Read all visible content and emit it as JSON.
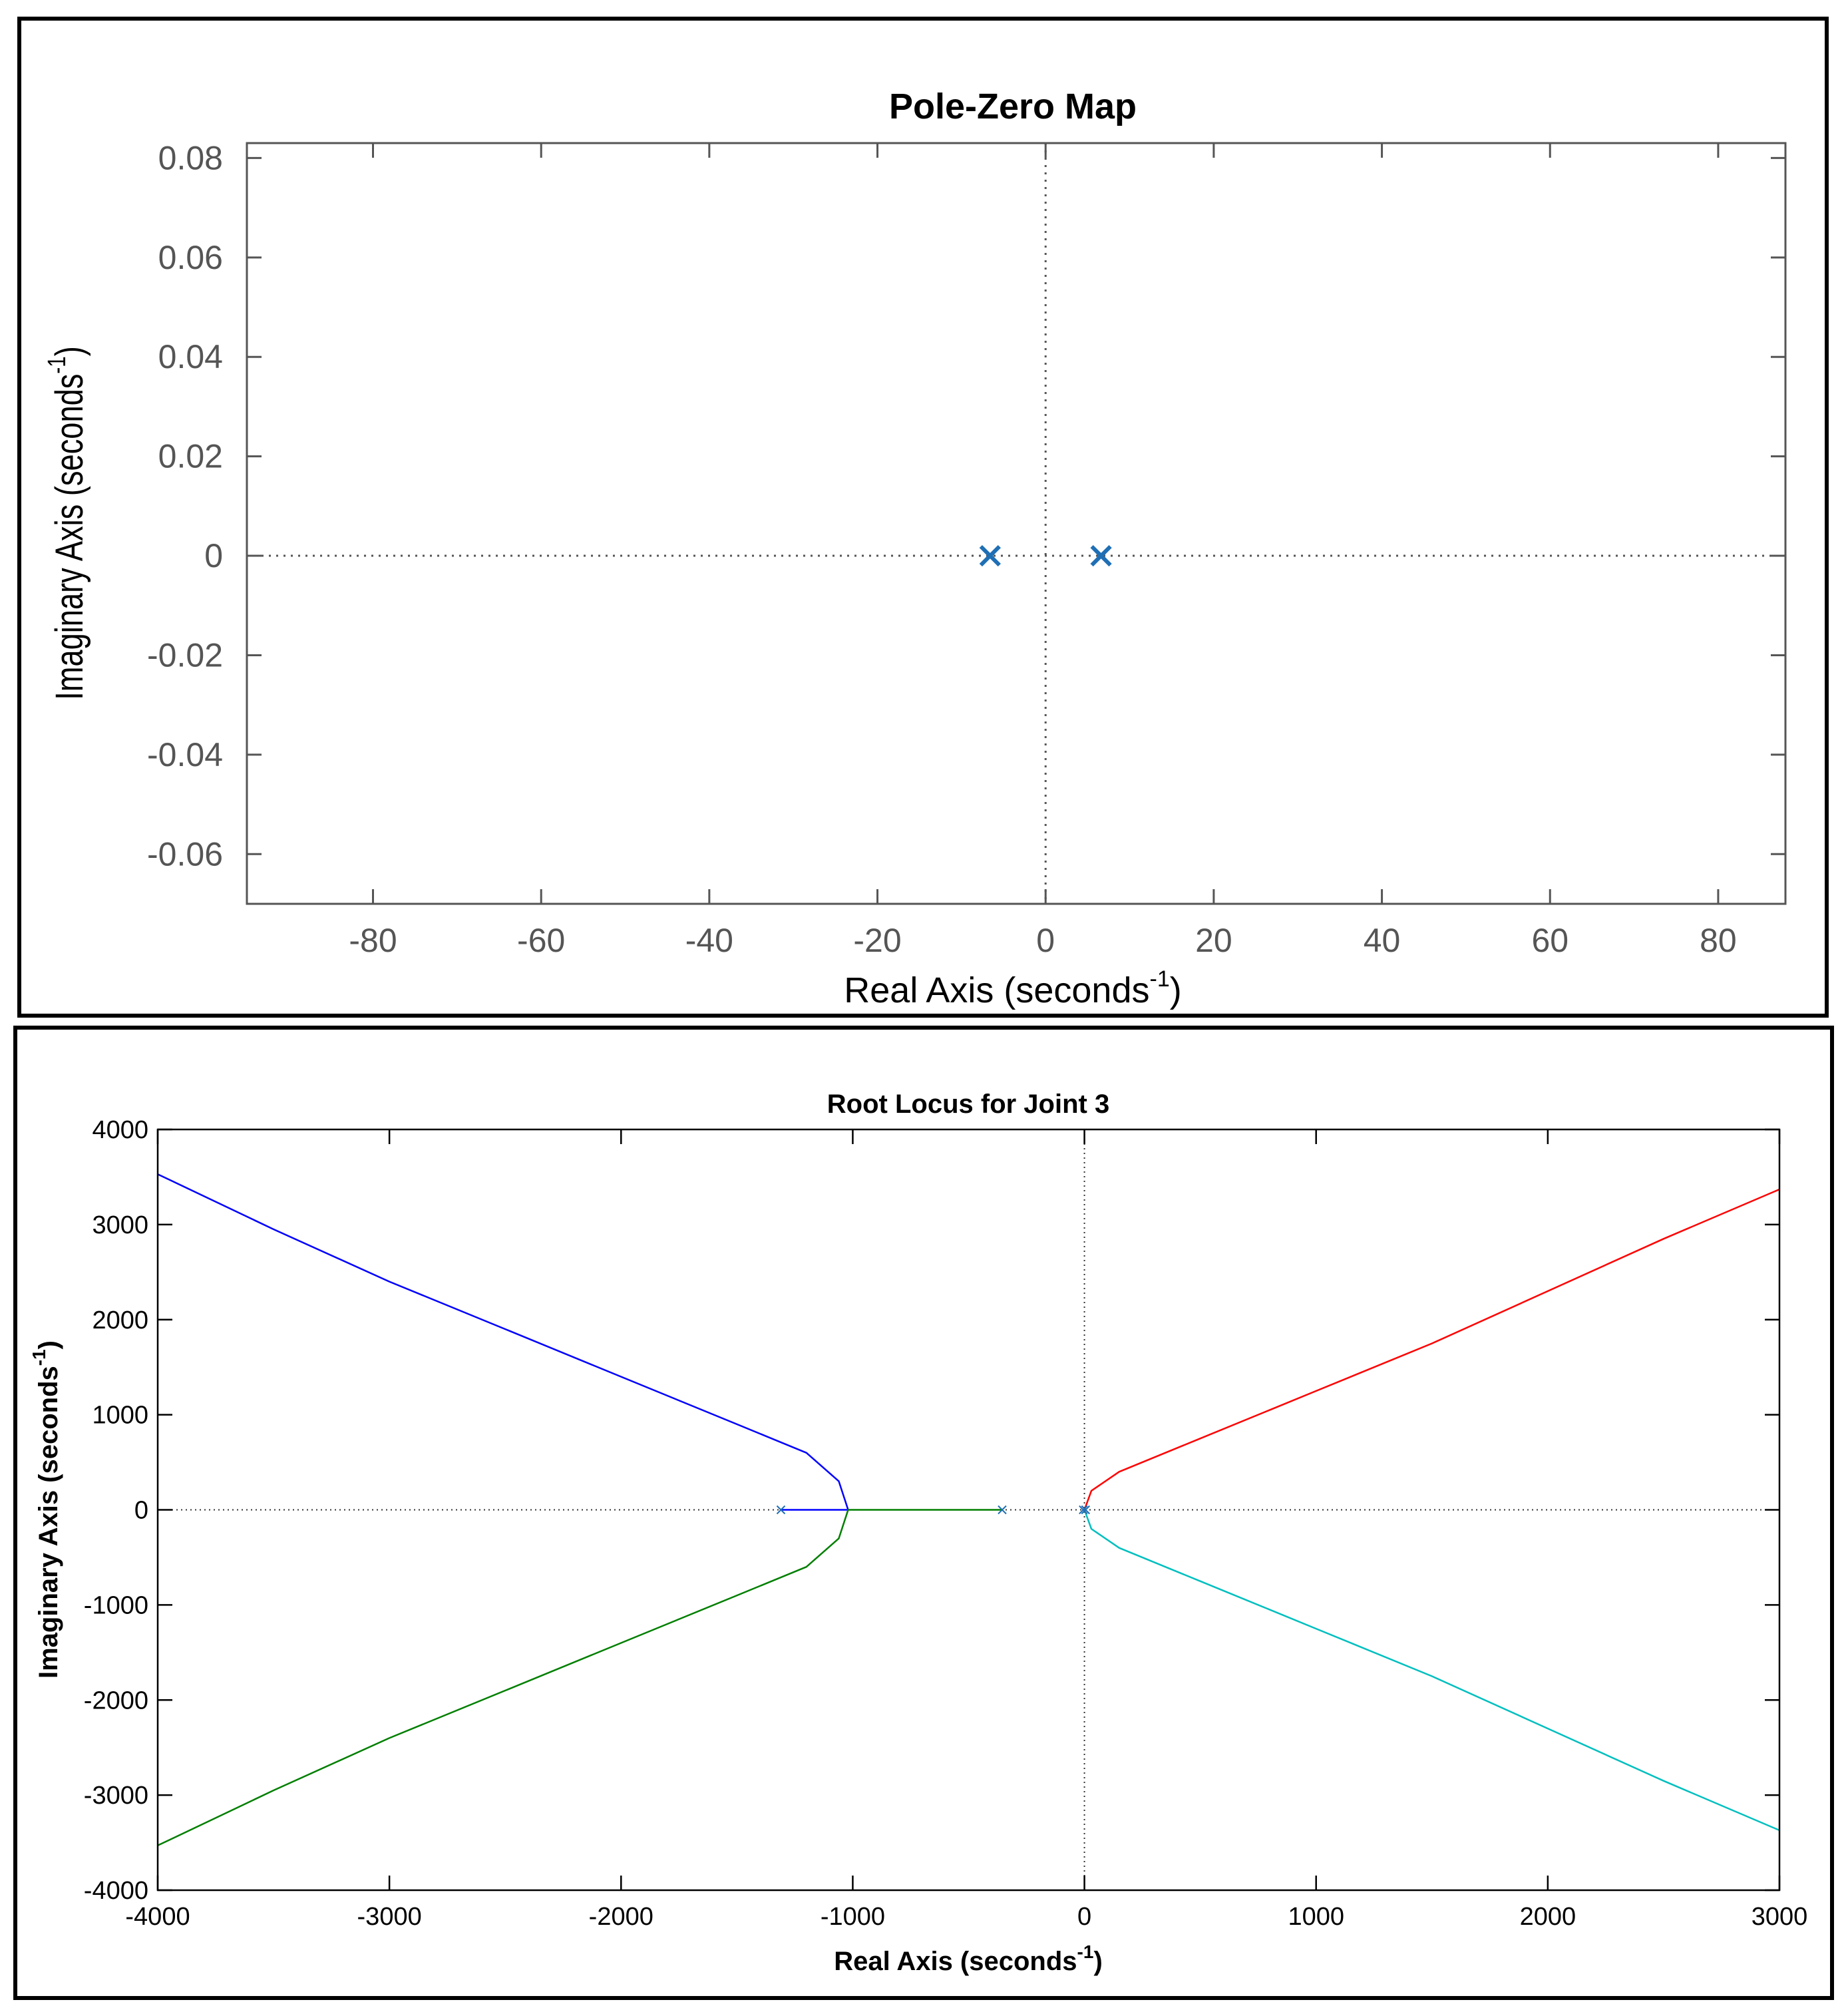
{
  "chart_data": [
    {
      "type": "scatter",
      "title": "Pole-Zero Map",
      "xlabel": "Real Axis (seconds",
      "xlabel_sup": "-1",
      "xlabel_end": ")",
      "ylabel": "Imaginary Axis (seconds",
      "ylabel_sup": "-1",
      "ylabel_end": ")",
      "xlim": [
        -95,
        88
      ],
      "ylim": [
        -0.07,
        0.083
      ],
      "xticks": [
        -80,
        -60,
        -40,
        -20,
        0,
        20,
        40,
        60,
        80
      ],
      "yticks": [
        -0.06,
        -0.04,
        -0.02,
        0,
        0.02,
        0.04,
        0.06,
        0.08
      ],
      "xtick_labels": [
        "-80",
        "-60",
        "-40",
        "-20",
        "0",
        "20",
        "40",
        "60",
        "80"
      ],
      "ytick_labels": [
        "-0.06",
        "-0.04",
        "-0.02",
        "0",
        "0.02",
        "0.04",
        "0.06",
        "0.08"
      ],
      "grid": false,
      "marker_color": "#1f6fb5",
      "poles": [
        {
          "x": -6.6,
          "y": 0
        },
        {
          "x": 6.6,
          "y": 0
        }
      ]
    },
    {
      "type": "line",
      "title": "Root Locus for Joint 3",
      "xlabel": "Real Axis (seconds",
      "xlabel_sup": "-1",
      "xlabel_end": ")",
      "ylabel": "Imaginary Axis (seconds",
      "ylabel_sup": "-1",
      "ylabel_end": ")",
      "xlim": [
        -4000,
        3000
      ],
      "ylim": [
        -4000,
        4000
      ],
      "xticks": [
        -4000,
        -3000,
        -2000,
        -1000,
        0,
        1000,
        2000,
        3000
      ],
      "yticks": [
        -4000,
        -3000,
        -2000,
        -1000,
        0,
        1000,
        2000,
        3000,
        4000
      ],
      "xtick_labels": [
        "-4000",
        "-3000",
        "-2000",
        "-1000",
        "0",
        "1000",
        "2000",
        "3000"
      ],
      "ytick_labels": [
        "-4000",
        "-3000",
        "-2000",
        "-1000",
        "0",
        "1000",
        "2000",
        "3000",
        "4000"
      ],
      "grid": false,
      "poles": [
        {
          "x": -1310,
          "y": 0
        },
        {
          "x": -355,
          "y": 0
        },
        {
          "x": -5,
          "y": 0
        },
        {
          "x": 5,
          "y": 0
        }
      ],
      "series": [
        {
          "color": "#0000ff",
          "points": [
            [
              -1310,
              0
            ],
            [
              -1020,
              0
            ],
            [
              -1060,
              300
            ],
            [
              -1200,
              600
            ],
            [
              -1500,
              900
            ],
            [
              -2000,
              1400
            ],
            [
              -2500,
              1900
            ],
            [
              -3000,
              2400
            ],
            [
              -3500,
              2950
            ],
            [
              -4000,
              3530
            ]
          ]
        },
        {
          "color": "#007f00",
          "points": [
            [
              -355,
              0
            ],
            [
              -1020,
              0
            ],
            [
              -1060,
              -300
            ],
            [
              -1200,
              -600
            ],
            [
              -1500,
              -900
            ],
            [
              -2000,
              -1400
            ],
            [
              -2500,
              -1900
            ],
            [
              -3000,
              -2400
            ],
            [
              -3500,
              -2950
            ],
            [
              -4000,
              -3530
            ]
          ]
        },
        {
          "color": "#ff0000",
          "points": [
            [
              0,
              0
            ],
            [
              30,
              200
            ],
            [
              150,
              400
            ],
            [
              500,
              750
            ],
            [
              1000,
              1250
            ],
            [
              1500,
              1750
            ],
            [
              2000,
              2300
            ],
            [
              2500,
              2850
            ],
            [
              3000,
              3370
            ]
          ]
        },
        {
          "color": "#00bfbf",
          "points": [
            [
              0,
              0
            ],
            [
              30,
              -200
            ],
            [
              150,
              -400
            ],
            [
              500,
              -750
            ],
            [
              1000,
              -1250
            ],
            [
              1500,
              -1750
            ],
            [
              2000,
              -2300
            ],
            [
              2500,
              -2850
            ],
            [
              3000,
              -3370
            ]
          ]
        }
      ]
    }
  ]
}
